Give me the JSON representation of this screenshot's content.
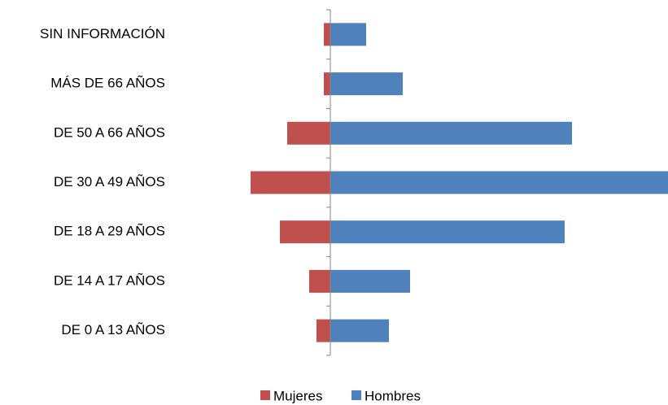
{
  "chart_data": {
    "type": "bar",
    "orientation": "horizontal",
    "categories": [
      "SIN INFORMACIÓN",
      "MÁS DE 66 AÑOS",
      "DE 50 A 66 AÑOS",
      "DE 30 A 49 AÑOS",
      "DE 18 A 29 AÑOS",
      "DE 14 A 17 AÑOS",
      "DE 0 A 13 AÑOS"
    ],
    "series": [
      {
        "name": "Mujeres",
        "color": "#c0504d",
        "direction": "left",
        "values": [
          8,
          8,
          53,
          98,
          62,
          26,
          17
        ]
      },
      {
        "name": "Hombres",
        "color": "#4f81bd",
        "direction": "right",
        "values": [
          44,
          89,
          297,
          415,
          288,
          98,
          72
        ]
      }
    ],
    "xlim": [
      -198,
      415
    ],
    "legend": "bottom"
  }
}
